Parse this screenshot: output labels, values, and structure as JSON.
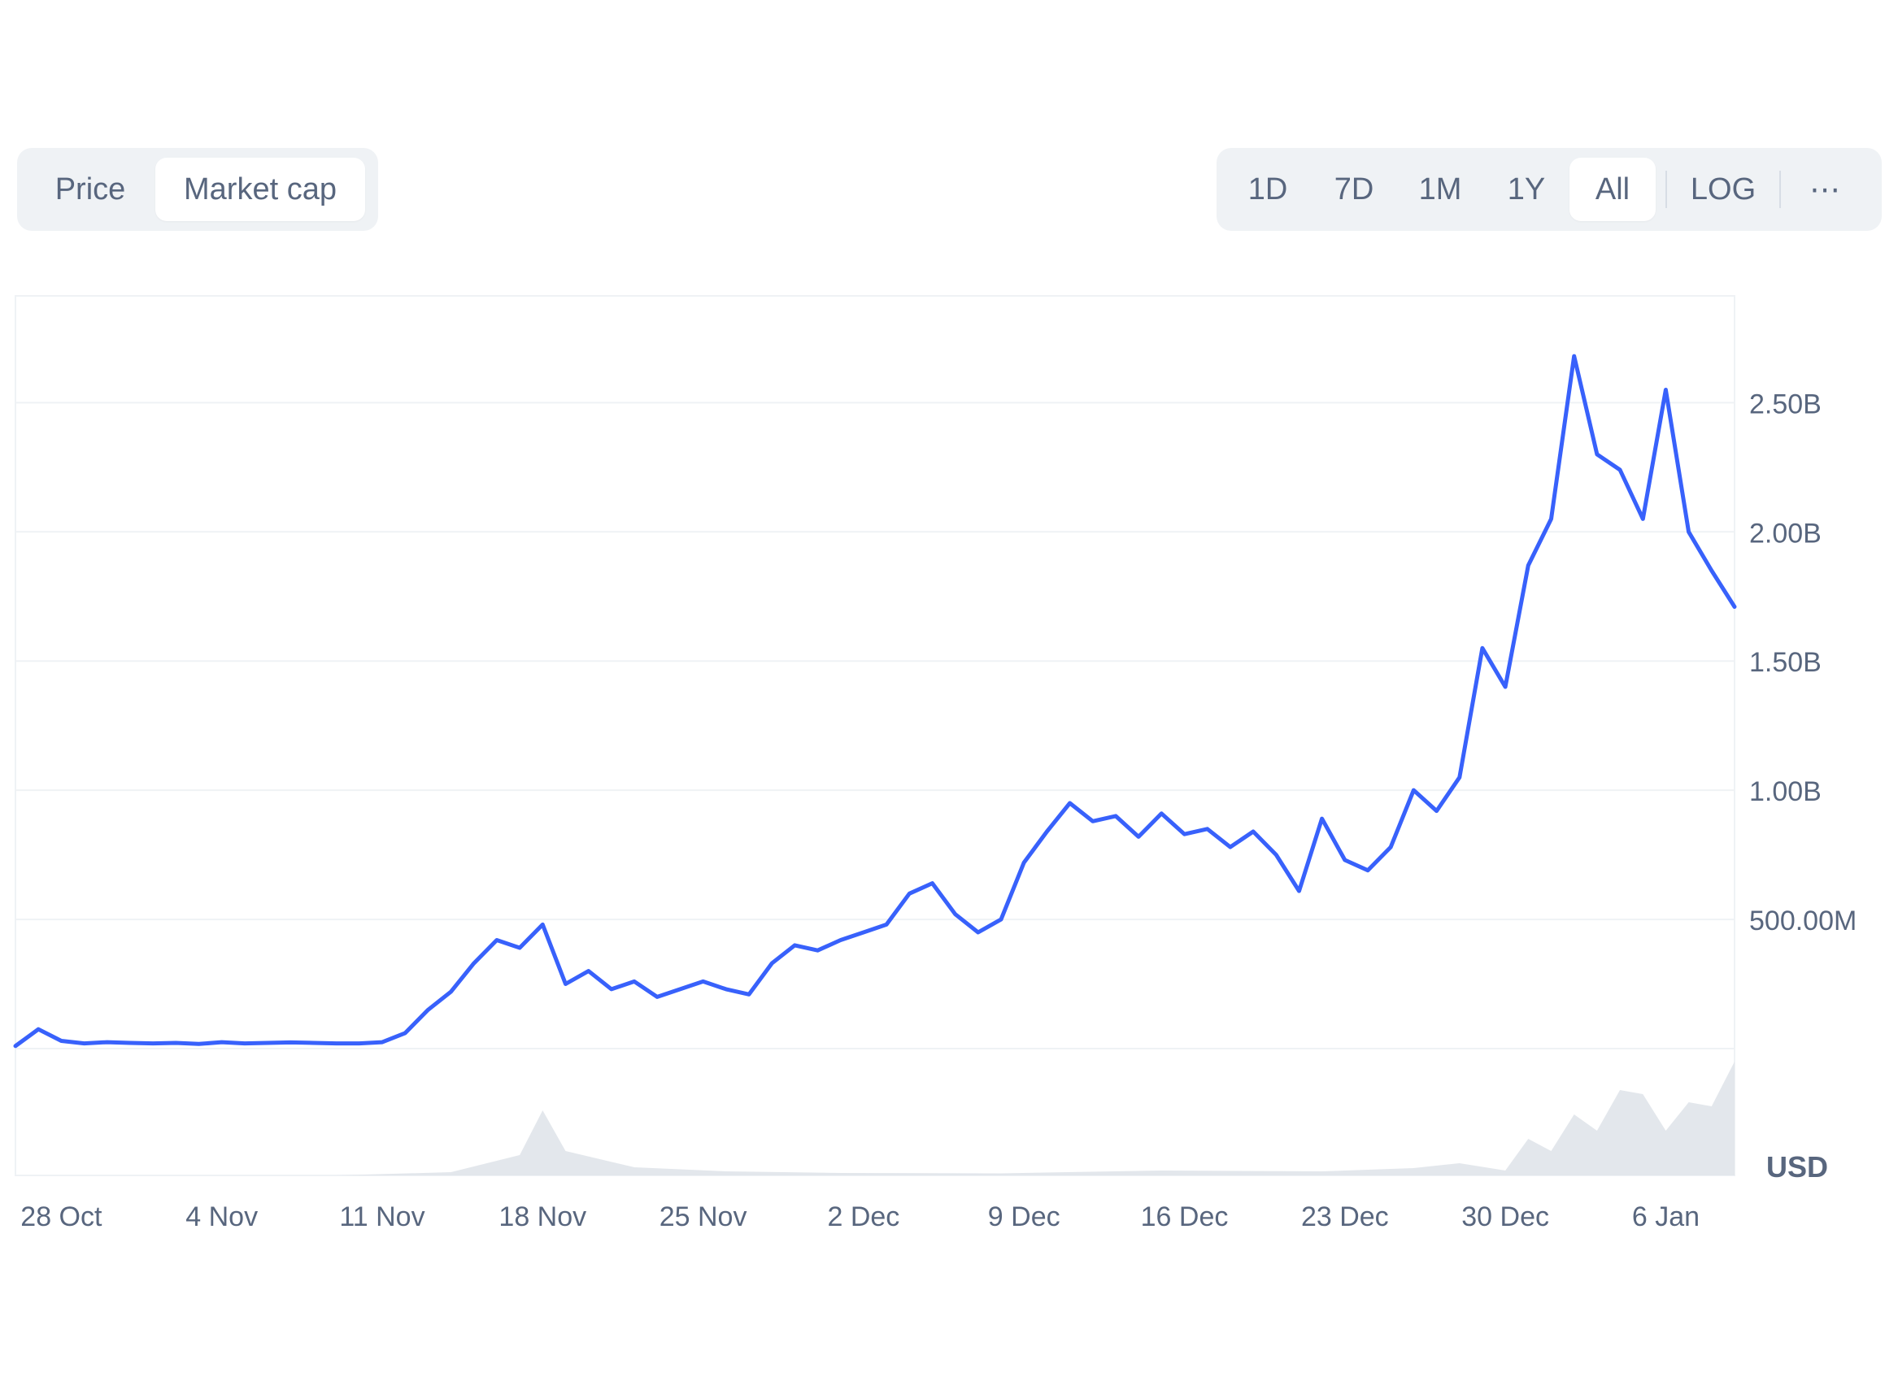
{
  "metric_tabs": {
    "price": "Price",
    "market_cap": "Market cap",
    "active": "Market cap"
  },
  "range_tabs": [
    "1D",
    "7D",
    "1M",
    "1Y",
    "All"
  ],
  "active_range": "All",
  "log_label": "LOG",
  "more_label": "⋯",
  "colors": {
    "line": "#3861fb",
    "volume": "#e0e4ea",
    "grid": "#eff2f5",
    "tab_bg": "#eff2f5",
    "text": "#58667e"
  },
  "chart_data": {
    "type": "line",
    "currency_label": "USD",
    "ylim": [
      0,
      2800000000
    ],
    "y_ticks": [
      {
        "value": 500000000,
        "label": "500.00M"
      },
      {
        "value": 1000000000,
        "label": "1.00B"
      },
      {
        "value": 1500000000,
        "label": "1.50B"
      },
      {
        "value": 2000000000,
        "label": "2.00B"
      },
      {
        "value": 2500000000,
        "label": "2.50B"
      }
    ],
    "x_range": [
      "2024-10-26",
      "2025-01-09"
    ],
    "x_ticks": [
      {
        "date": "2024-10-28",
        "label": "28 Oct"
      },
      {
        "date": "2024-11-04",
        "label": "4 Nov"
      },
      {
        "date": "2024-11-11",
        "label": "11 Nov"
      },
      {
        "date": "2024-11-18",
        "label": "18 Nov"
      },
      {
        "date": "2024-11-25",
        "label": "25 Nov"
      },
      {
        "date": "2024-12-02",
        "label": "2 Dec"
      },
      {
        "date": "2024-12-09",
        "label": "9 Dec"
      },
      {
        "date": "2024-12-16",
        "label": "16 Dec"
      },
      {
        "date": "2024-12-23",
        "label": "23 Dec"
      },
      {
        "date": "2024-12-30",
        "label": "30 Dec"
      },
      {
        "date": "2025-01-06",
        "label": "6 Jan"
      }
    ],
    "series": [
      {
        "x": [
          "2024-10-26",
          "2024-10-27",
          "2024-10-28",
          "2024-10-29",
          "2024-10-30",
          "2024-10-31",
          "2024-11-01",
          "2024-11-02",
          "2024-11-03",
          "2024-11-04",
          "2024-11-05",
          "2024-11-06",
          "2024-11-07",
          "2024-11-08",
          "2024-11-09",
          "2024-11-10",
          "2024-11-11",
          "2024-11-12",
          "2024-11-13",
          "2024-11-14",
          "2024-11-15",
          "2024-11-16",
          "2024-11-17",
          "2024-11-18",
          "2024-11-19",
          "2024-11-20",
          "2024-11-21",
          "2024-11-22",
          "2024-11-23",
          "2024-11-24",
          "2024-11-25",
          "2024-11-26",
          "2024-11-27",
          "2024-11-28",
          "2024-11-29",
          "2024-11-30",
          "2024-12-01",
          "2024-12-02",
          "2024-12-03",
          "2024-12-04",
          "2024-12-05",
          "2024-12-06",
          "2024-12-07",
          "2024-12-08",
          "2024-12-09",
          "2024-12-10",
          "2024-12-11",
          "2024-12-12",
          "2024-12-13",
          "2024-12-14",
          "2024-12-15",
          "2024-12-16",
          "2024-12-17",
          "2024-12-18",
          "2024-12-19",
          "2024-12-20",
          "2024-12-21",
          "2024-12-22",
          "2024-12-23",
          "2024-12-24",
          "2024-12-25",
          "2024-12-26",
          "2024-12-27",
          "2024-12-28",
          "2024-12-29",
          "2024-12-30",
          "2024-12-31",
          "2025-01-01",
          "2025-01-02",
          "2025-01-03",
          "2025-01-04",
          "2025-01-05",
          "2025-01-06",
          "2025-01-07",
          "2025-01-08",
          "2025-01-09"
        ],
        "values": [
          10000000,
          75000000,
          30000000,
          20000000,
          25000000,
          22000000,
          20000000,
          22000000,
          18000000,
          25000000,
          20000000,
          22000000,
          24000000,
          22000000,
          20000000,
          20000000,
          25000000,
          60000000,
          150000000,
          220000000,
          330000000,
          420000000,
          390000000,
          480000000,
          250000000,
          300000000,
          230000000,
          260000000,
          200000000,
          230000000,
          260000000,
          230000000,
          210000000,
          330000000,
          400000000,
          380000000,
          420000000,
          450000000,
          480000000,
          600000000,
          640000000,
          520000000,
          450000000,
          500000000,
          720000000,
          840000000,
          950000000,
          880000000,
          900000000,
          820000000,
          910000000,
          830000000,
          850000000,
          780000000,
          840000000,
          750000000,
          610000000,
          890000000,
          730000000,
          690000000,
          780000000,
          1000000000,
          920000000,
          1050000000,
          1550000000,
          1400000000,
          1870000000,
          2050000000,
          2680000000,
          2300000000,
          2240000000,
          2050000000,
          2550000000,
          2000000000,
          1850000000,
          1710000000
        ]
      }
    ],
    "volume": {
      "x": [
        "2024-10-26",
        "2024-11-02",
        "2024-11-09",
        "2024-11-14",
        "2024-11-17",
        "2024-11-18",
        "2024-11-19",
        "2024-11-22",
        "2024-11-26",
        "2024-12-01",
        "2024-12-08",
        "2024-12-15",
        "2024-12-22",
        "2024-12-26",
        "2024-12-28",
        "2024-12-30",
        "2024-12-31",
        "2025-01-01",
        "2025-01-02",
        "2025-01-03",
        "2025-01-04",
        "2025-01-05",
        "2025-01-06",
        "2025-01-07",
        "2025-01-08",
        "2025-01-09"
      ],
      "values": [
        0,
        0,
        0,
        8,
        50,
        160,
        60,
        20,
        10,
        6,
        5,
        12,
        10,
        18,
        30,
        12,
        90,
        60,
        150,
        110,
        210,
        200,
        110,
        180,
        170,
        280
      ]
    }
  }
}
